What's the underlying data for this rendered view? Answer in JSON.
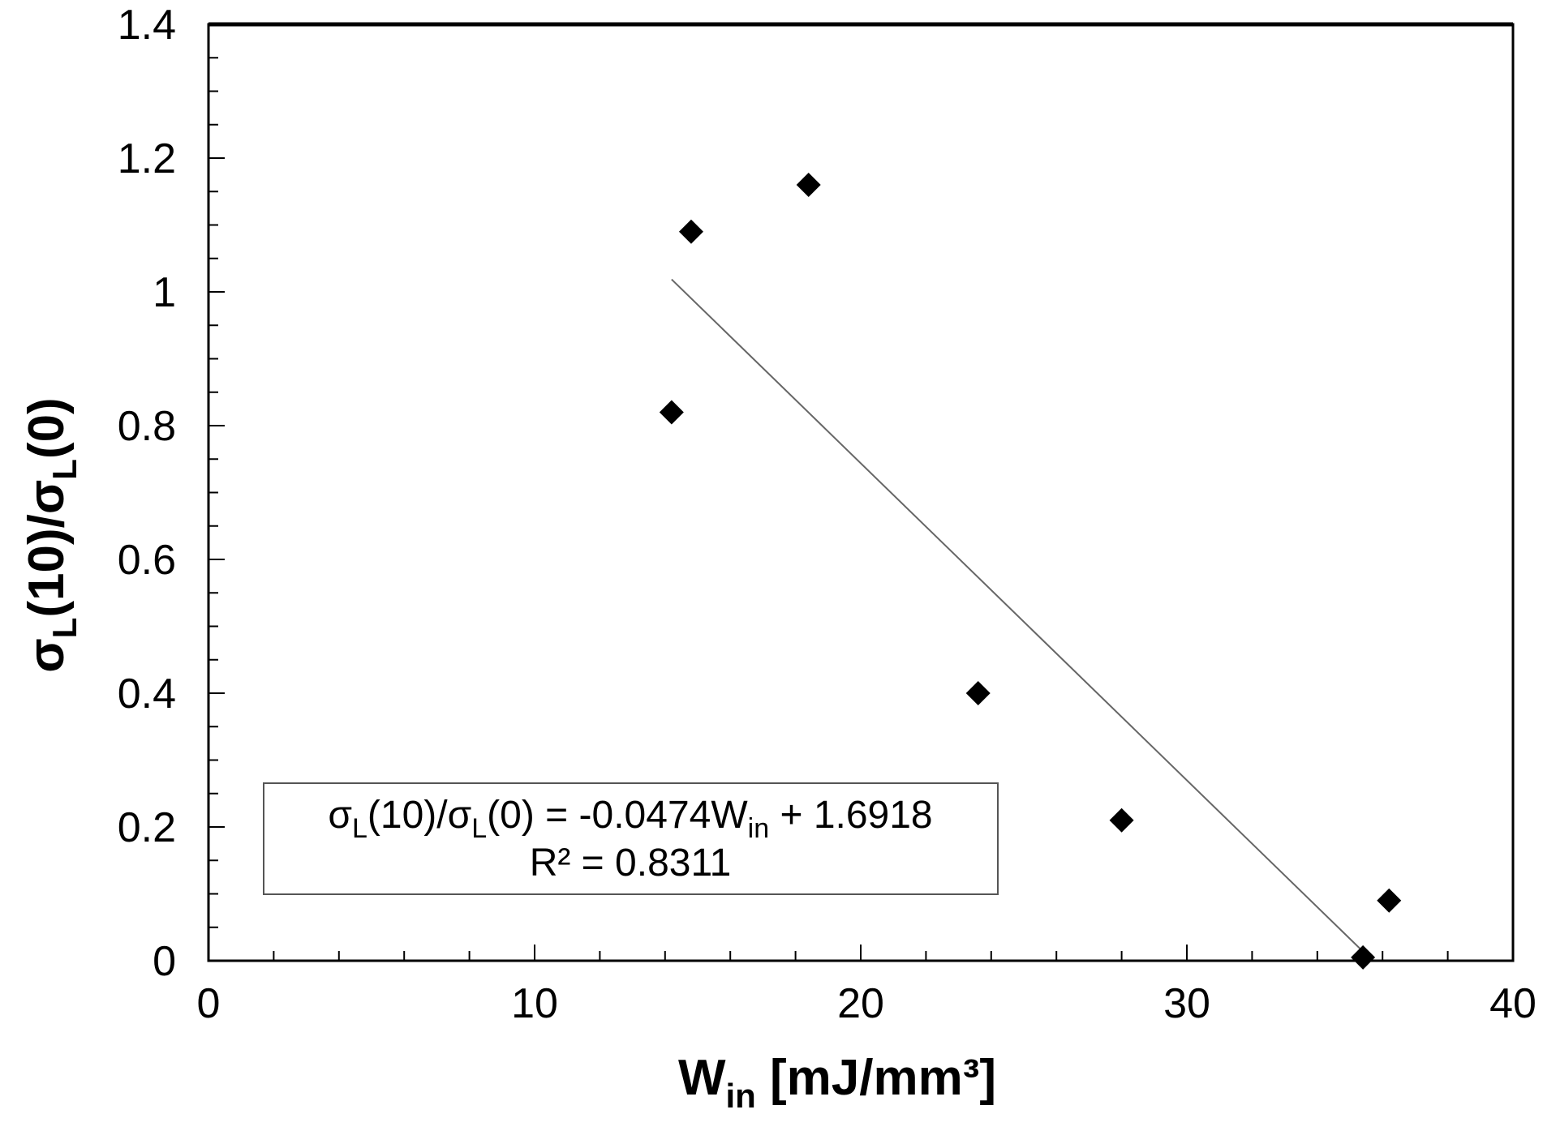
{
  "chart_data": {
    "type": "scatter",
    "xlim": [
      0,
      40
    ],
    "ylim": [
      0,
      1.4
    ],
    "x_ticks": [
      "0",
      "10",
      "20",
      "30",
      "40"
    ],
    "y_ticks": [
      "0",
      "0.2",
      "0.4",
      "0.6",
      "0.8",
      "1",
      "1.2",
      "1.4"
    ],
    "xlabel": {
      "main": "W",
      "sub": "in",
      "rest": " [mJ/mm³]"
    },
    "ylabel": {
      "a": "σ",
      "a_sub": "L",
      "b": "(10)/σ",
      "b_sub": "L",
      "c": "(0)"
    },
    "series": [
      {
        "marker": "diamond",
        "color": "#000000",
        "points": [
          {
            "x": 14.2,
            "y": 0.82
          },
          {
            "x": 14.8,
            "y": 1.09
          },
          {
            "x": 18.4,
            "y": 1.16
          },
          {
            "x": 23.6,
            "y": 0.4
          },
          {
            "x": 28.0,
            "y": 0.21
          },
          {
            "x": 35.4,
            "y": 0.005
          },
          {
            "x": 36.2,
            "y": 0.09
          }
        ]
      }
    ],
    "trendline": {
      "slope": -0.0474,
      "intercept": 1.6918,
      "x_range": [
        14.2,
        35.4
      ],
      "color": "#666666"
    },
    "equation_box": {
      "line1_parts": [
        "σ",
        "L",
        "(10)/σ",
        "L",
        "(0) = -0.0474W",
        "in",
        " + 1.6918"
      ],
      "line2": "R² = 0.8311"
    },
    "grid": false
  }
}
